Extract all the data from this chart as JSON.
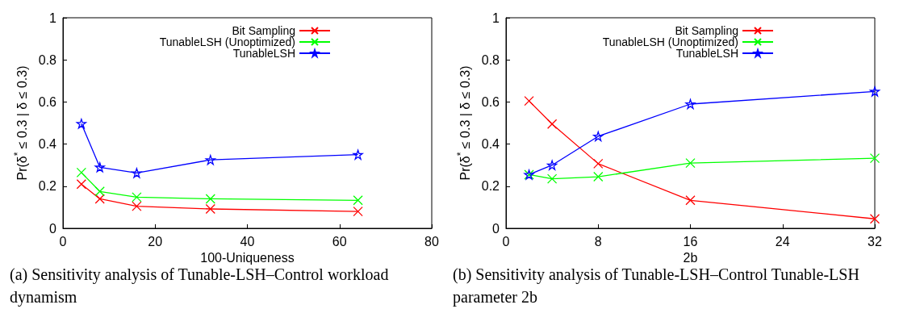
{
  "chart_data": [
    {
      "type": "line",
      "xlabel": "100-Uniqueness",
      "ylabel": "Pr(δ$^{*}$ ≤ 0.3 | δ ≤ 0.3)",
      "xlim": [
        0,
        80
      ],
      "xticks": [
        0,
        20,
        40,
        60,
        80
      ],
      "ylim": [
        0,
        1
      ],
      "yticks": [
        0,
        0.2,
        0.4,
        0.6,
        0.8,
        1
      ],
      "grid": false,
      "legend": "top right",
      "line_style": "solid",
      "series": [
        {
          "name": "Bit Sampling",
          "color": "#ff0000",
          "marker": "cross",
          "x": [
            4,
            8,
            16,
            32,
            64
          ],
          "values": [
            0.21,
            0.14,
            0.105,
            0.092,
            0.08
          ]
        },
        {
          "name": "TunableLSH (Unoptimized)",
          "color": "#00ff00",
          "marker": "cross",
          "x": [
            4,
            8,
            16,
            32,
            64
          ],
          "values": [
            0.265,
            0.175,
            0.148,
            0.14,
            0.133
          ]
        },
        {
          "name": "TunableLSH",
          "color": "#0000ff",
          "marker": "star",
          "x": [
            4,
            8,
            16,
            32,
            64
          ],
          "values": [
            0.497,
            0.29,
            0.263,
            0.325,
            0.35
          ]
        }
      ],
      "annotations": [
        "(a) Sensitivity analysis of Tunable-LSH–Control workload dynamism"
      ]
    },
    {
      "type": "line",
      "xlabel": "2b",
      "ylabel": "Pr(δ$^{*}$ ≤ 0.3 | δ ≤ 0.3)",
      "xlim": [
        0,
        32
      ],
      "xticks": [
        0,
        8,
        16,
        24,
        32
      ],
      "ylim": [
        0,
        1
      ],
      "yticks": [
        0,
        0.2,
        0.4,
        0.6,
        0.8,
        1
      ],
      "grid": false,
      "legend": "top right",
      "line_style": "solid",
      "series": [
        {
          "name": "Bit Sampling",
          "color": "#ff0000",
          "marker": "cross",
          "x": [
            2,
            4,
            8,
            16,
            32
          ],
          "values": [
            0.605,
            0.495,
            0.307,
            0.133,
            0.045
          ]
        },
        {
          "name": "TunableLSH (Unoptimized)",
          "color": "#00ff00",
          "marker": "cross",
          "x": [
            2,
            4,
            8,
            16,
            32
          ],
          "values": [
            0.255,
            0.235,
            0.245,
            0.31,
            0.333
          ]
        },
        {
          "name": "TunableLSH",
          "color": "#0000ff",
          "marker": "star",
          "x": [
            2,
            4,
            8,
            16,
            32
          ],
          "values": [
            0.255,
            0.3,
            0.437,
            0.59,
            0.65
          ]
        }
      ],
      "annotations": [
        "(b) Sensitivity analysis of Tunable-LSH–Control Tunable-LSH parameter 2b"
      ]
    }
  ]
}
